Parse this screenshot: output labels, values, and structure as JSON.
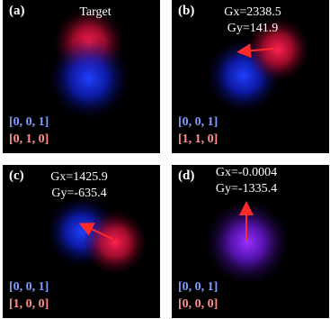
{
  "panels": [
    {
      "label": "(a)",
      "title": "Target",
      "gx_text": "",
      "gy_text": "",
      "vector_top": "[0, 0, 1]",
      "vector_bottom": "[0, 1, 0]",
      "colors": {
        "top": "#7f9cff",
        "bottom": "#ff8f8f"
      }
    },
    {
      "label": "(b)",
      "title": "",
      "gx_text": "Gx=2338.5",
      "gy_text": "Gy=141.9",
      "vector_top": "[0, 0, 1]",
      "vector_bottom": "[1, 1, 0]",
      "colors": {
        "top": "#7f9cff",
        "bottom": "#ff8f8f"
      }
    },
    {
      "label": "(c)",
      "title": "",
      "gx_text": "Gx=1425.9",
      "gy_text": "Gy=-635.4",
      "vector_top": "[0, 0, 1]",
      "vector_bottom": "[1, 0, 0]",
      "colors": {
        "top": "#7f9cff",
        "bottom": "#ff8f8f"
      }
    },
    {
      "label": "(d)",
      "title": "",
      "gx_text": "Gx=-0.0004",
      "gy_text": "Gy=-1335.4",
      "vector_top": "[0, 0, 1]",
      "vector_bottom": "[0, 0, 0]",
      "colors": {
        "top": "#7f9cff",
        "bottom": "#ff8f8f"
      }
    }
  ]
}
